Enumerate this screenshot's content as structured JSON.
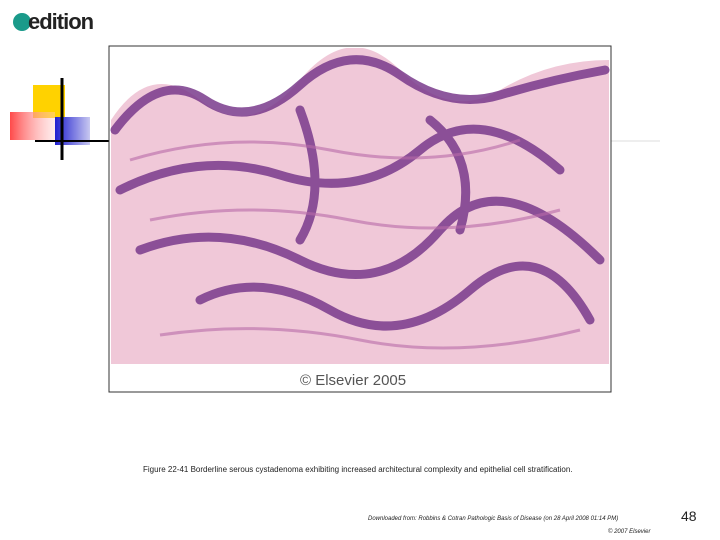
{
  "header": {
    "logo": "edition"
  },
  "figure": {
    "watermark": "© Elsevier 2005",
    "caption": "Figure 22-41 Borderline serous cystadenoma exhibiting increased architectural complexity and epithelial cell stratification."
  },
  "footer": {
    "source": "Downloaded from: Robbins & Cotran Pathologic Basis of Disease (on 28 April 2008 01:14 PM)",
    "copyright": "© 2007 Elsevier",
    "page_number": "48"
  }
}
